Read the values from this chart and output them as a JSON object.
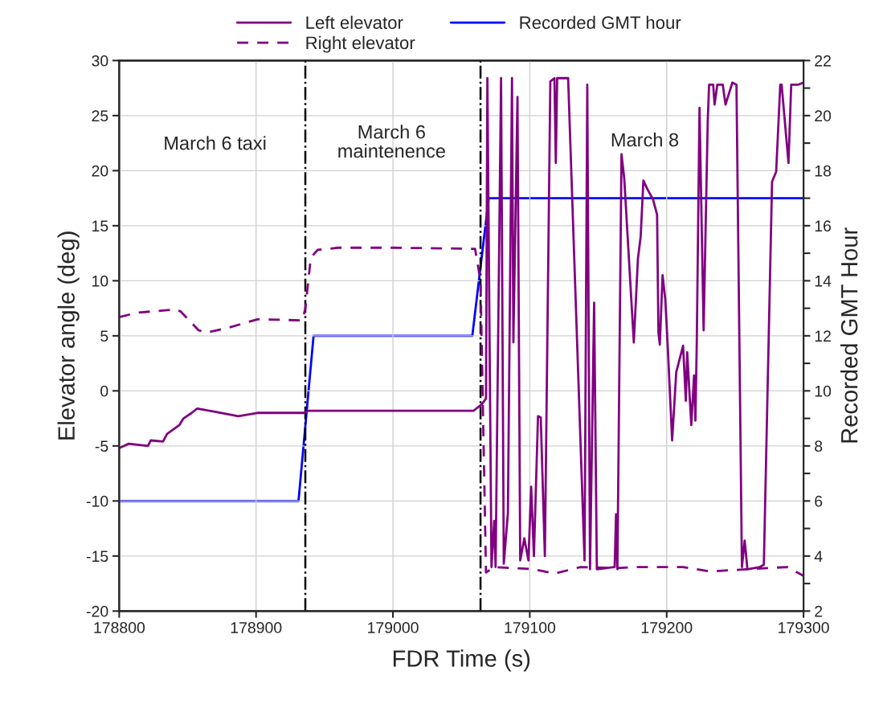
{
  "chart_data": {
    "type": "line",
    "xlabel": "FDR Time (s)",
    "ylabel": "Elevator angle (deg)",
    "y2label": "Recorded GMT Hour",
    "xlim": [
      178800,
      179300
    ],
    "xticks": [
      178800,
      178900,
      179000,
      179100,
      179200,
      179300
    ],
    "ylim": [
      -20,
      30
    ],
    "yticks": [
      -20,
      -15,
      -10,
      -5,
      0,
      5,
      10,
      15,
      20,
      25,
      30
    ],
    "y2lim": [
      2,
      22
    ],
    "y2ticks": [
      2,
      {
        "value": 3,
        "label": null
      },
      4,
      {
        "value": 5,
        "label": null
      },
      6,
      {
        "value": 7,
        "label": null
      },
      8,
      {
        "value": 9,
        "label": null
      },
      10,
      {
        "value": 11,
        "label": null
      },
      12,
      {
        "value": 13,
        "label": null
      },
      14,
      {
        "value": 15,
        "label": null
      },
      16,
      {
        "value": 17,
        "label": null
      },
      18,
      {
        "value": 19,
        "label": null
      },
      20,
      {
        "value": 21,
        "label": null
      },
      22
    ],
    "grid": true,
    "legend": "top",
    "series": [
      {
        "name": "Left elevator",
        "color": "#800080",
        "line_style": "solid",
        "x": [
          178800,
          178807,
          178821,
          178823,
          178832,
          178835,
          178844,
          178847,
          178853,
          178857,
          178870,
          178887,
          178901,
          178935,
          178938,
          179059,
          179065,
          179068,
          179069,
          179072,
          179074,
          179075,
          179079,
          179081,
          179084,
          179087,
          179088,
          179091,
          179093,
          179096,
          179099,
          179101,
          179103,
          179106,
          179108,
          179111,
          179115,
          179118,
          179119,
          179120,
          179128,
          179140,
          179142,
          179144,
          179147,
          179149,
          179162,
          179163,
          179164,
          179167,
          179169,
          179176,
          179179,
          179181,
          179183,
          179186,
          179190,
          179193,
          179194,
          179195,
          179197,
          179199,
          179201,
          179204,
          179207,
          179212,
          179214,
          179215,
          179218,
          179220,
          179221,
          179222,
          179224,
          179227,
          179230,
          179231,
          179234,
          179235,
          179237,
          179241,
          179243,
          179248,
          179251,
          179255,
          179257,
          179259,
          179268,
          179271,
          179277,
          179280,
          179283,
          179284,
          179289,
          179291,
          179296,
          179300
        ],
        "values": [
          -5.2,
          -4.8,
          -5.0,
          -4.5,
          -4.6,
          -3.9,
          -3.1,
          -2.5,
          -2.0,
          -1.6,
          -1.9,
          -2.3,
          -2.0,
          -2.0,
          -1.8,
          -1.8,
          -1.2,
          -0.7,
          28.4,
          -16.0,
          -11.8,
          -16.0,
          28.4,
          -15.7,
          -11.1,
          28.4,
          4.4,
          26.7,
          -15.4,
          -13.4,
          -15.4,
          -8.7,
          -15.0,
          -2.3,
          -2.4,
          -15.0,
          28.1,
          28.4,
          20.7,
          28.4,
          28.4,
          -15.4,
          27.8,
          -16.2,
          8.0,
          -16.2,
          -16.0,
          -11.2,
          -16.2,
          21.5,
          19.3,
          4.4,
          12.0,
          14.0,
          19.1,
          18.3,
          17.4,
          16.0,
          5.3,
          4.2,
          10.5,
          8.3,
          3.5,
          -4.5,
          1.7,
          4.1,
          -0.9,
          3.5,
          -3.1,
          1.4,
          -2.7,
          4.4,
          25.7,
          5.5,
          24.5,
          27.8,
          27.8,
          26.0,
          27.8,
          27.8,
          26.0,
          28.0,
          27.8,
          -16.0,
          -13.6,
          -16.2,
          -16.0,
          -15.8,
          19.0,
          19.9,
          27.8,
          27.8,
          20.7,
          27.8,
          27.8,
          28.0
        ]
      },
      {
        "name": "Right elevator",
        "color": "#800080",
        "line_style": "dashed",
        "x": [
          178800,
          178813,
          178842,
          178845,
          178858,
          178864,
          178879,
          178901,
          178934,
          178936,
          178940,
          178945,
          178960,
          179000,
          179060,
          179064,
          179068,
          179074,
          179103,
          179118,
          179137,
          179162,
          179177,
          179192,
          179212,
          179232,
          179258,
          179288,
          179300
        ],
        "values": [
          6.7,
          7.1,
          7.4,
          7.2,
          5.5,
          5.3,
          5.7,
          6.5,
          6.4,
          7.5,
          12.1,
          12.8,
          13.0,
          13.0,
          12.9,
          10.0,
          -16.5,
          -16.0,
          -16.2,
          -16.6,
          -16.0,
          -16.1,
          -16.0,
          -16.0,
          -16.0,
          -16.4,
          -16.2,
          -16.0,
          -16.8
        ]
      },
      {
        "name": "Recorded GMT hour",
        "color": "#0000ff",
        "line_style": "solid",
        "axis": "y2",
        "x": [
          178800,
          178931,
          178942,
          179058,
          179070,
          179300
        ],
        "values": [
          6,
          6,
          12,
          12,
          17,
          17
        ]
      }
    ],
    "ref_lines": [
      {
        "axis": "x",
        "value": 178936,
        "color": "#000000",
        "line_style": "dashdot"
      },
      {
        "axis": "x",
        "value": 179064,
        "color": "#000000",
        "line_style": "dashdot"
      }
    ],
    "annotations": [
      "March 6 taxi",
      "March 6\nmaintenence",
      "March 8"
    ]
  }
}
